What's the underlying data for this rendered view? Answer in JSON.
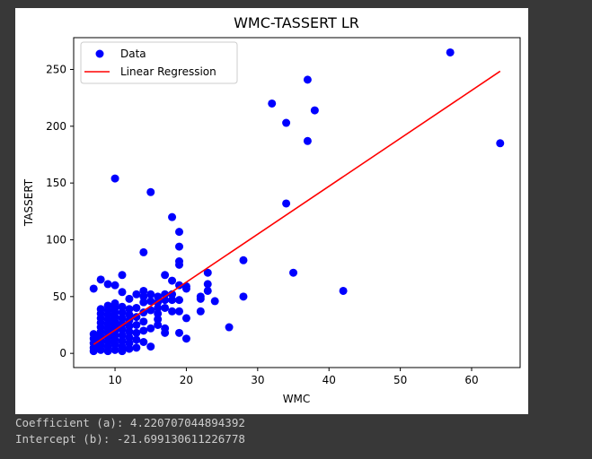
{
  "chart_data": {
    "type": "scatter",
    "title": "WMC-TASSERT LR",
    "xlabel": "WMC",
    "ylabel": "TASSERT",
    "xlim": [
      4.2,
      66.8
    ],
    "ylim": [
      -12.5,
      278
    ],
    "xticks": [
      10,
      20,
      30,
      40,
      50,
      60
    ],
    "yticks": [
      0,
      50,
      100,
      150,
      200,
      250
    ],
    "grid": false,
    "legend_position": "top-left",
    "series": [
      {
        "name": "Data",
        "kind": "scatter",
        "color": "#0000ff",
        "points": [
          [
            7,
            2
          ],
          [
            7,
            5
          ],
          [
            7,
            9
          ],
          [
            7,
            13
          ],
          [
            7,
            17
          ],
          [
            7,
            57
          ],
          [
            8,
            3
          ],
          [
            8,
            7
          ],
          [
            8,
            11
          ],
          [
            8,
            15
          ],
          [
            8,
            19
          ],
          [
            8,
            23
          ],
          [
            8,
            27
          ],
          [
            8,
            31
          ],
          [
            8,
            35
          ],
          [
            8,
            39
          ],
          [
            8,
            65
          ],
          [
            9,
            2
          ],
          [
            9,
            6
          ],
          [
            9,
            10
          ],
          [
            9,
            14
          ],
          [
            9,
            18
          ],
          [
            9,
            22
          ],
          [
            9,
            26
          ],
          [
            9,
            30
          ],
          [
            9,
            34
          ],
          [
            9,
            38
          ],
          [
            9,
            42
          ],
          [
            9,
            61
          ],
          [
            10,
            3
          ],
          [
            10,
            8
          ],
          [
            10,
            12
          ],
          [
            10,
            16
          ],
          [
            10,
            20
          ],
          [
            10,
            24
          ],
          [
            10,
            28
          ],
          [
            10,
            32
          ],
          [
            10,
            36
          ],
          [
            10,
            40
          ],
          [
            10,
            44
          ],
          [
            10,
            60
          ],
          [
            10,
            154
          ],
          [
            11,
            2
          ],
          [
            11,
            6
          ],
          [
            11,
            11
          ],
          [
            11,
            16
          ],
          [
            11,
            21
          ],
          [
            11,
            26
          ],
          [
            11,
            31
          ],
          [
            11,
            36
          ],
          [
            11,
            41
          ],
          [
            11,
            54
          ],
          [
            11,
            69
          ],
          [
            12,
            4
          ],
          [
            12,
            9
          ],
          [
            12,
            14
          ],
          [
            12,
            19
          ],
          [
            12,
            24
          ],
          [
            12,
            29
          ],
          [
            12,
            34
          ],
          [
            12,
            39
          ],
          [
            12,
            48
          ],
          [
            13,
            5
          ],
          [
            13,
            12
          ],
          [
            13,
            18
          ],
          [
            13,
            25
          ],
          [
            13,
            32
          ],
          [
            13,
            40
          ],
          [
            13,
            52
          ],
          [
            14,
            10
          ],
          [
            14,
            20
          ],
          [
            14,
            28
          ],
          [
            14,
            36
          ],
          [
            14,
            45
          ],
          [
            14,
            50
          ],
          [
            14,
            55
          ],
          [
            14,
            89
          ],
          [
            15,
            6
          ],
          [
            15,
            22
          ],
          [
            15,
            38
          ],
          [
            15,
            46
          ],
          [
            15,
            52
          ],
          [
            15,
            142
          ],
          [
            16,
            25
          ],
          [
            16,
            30
          ],
          [
            16,
            35
          ],
          [
            16,
            40
          ],
          [
            16,
            45
          ],
          [
            16,
            50
          ],
          [
            17,
            18
          ],
          [
            17,
            22
          ],
          [
            17,
            40
          ],
          [
            17,
            47
          ],
          [
            17,
            52
          ],
          [
            17,
            69
          ],
          [
            18,
            37
          ],
          [
            18,
            47
          ],
          [
            18,
            52
          ],
          [
            18,
            64
          ],
          [
            18,
            120
          ],
          [
            19,
            18
          ],
          [
            19,
            37
          ],
          [
            19,
            47
          ],
          [
            19,
            60
          ],
          [
            19,
            78
          ],
          [
            19,
            81
          ],
          [
            19,
            94
          ],
          [
            19,
            107
          ],
          [
            20,
            13
          ],
          [
            20,
            31
          ],
          [
            20,
            57
          ],
          [
            20,
            59
          ],
          [
            22,
            37
          ],
          [
            22,
            48
          ],
          [
            22,
            50
          ],
          [
            23,
            55
          ],
          [
            23,
            61
          ],
          [
            23,
            71
          ],
          [
            24,
            46
          ],
          [
            26,
            23
          ],
          [
            28,
            50
          ],
          [
            28,
            82
          ],
          [
            32,
            220
          ],
          [
            34,
            132
          ],
          [
            34,
            203
          ],
          [
            35,
            71
          ],
          [
            37,
            187
          ],
          [
            37,
            241
          ],
          [
            38,
            214
          ],
          [
            42,
            55
          ],
          [
            57,
            265
          ],
          [
            64,
            185
          ]
        ]
      },
      {
        "name": "Linear Regression",
        "kind": "line",
        "color": "#ff0000",
        "x": [
          7,
          64
        ],
        "y": [
          7.85,
          248.44
        ]
      }
    ]
  },
  "output": {
    "coefficient_line": "Coefficient (a): 4.220707044894392",
    "intercept_line": "Intercept (b): -21.699130611226778"
  }
}
